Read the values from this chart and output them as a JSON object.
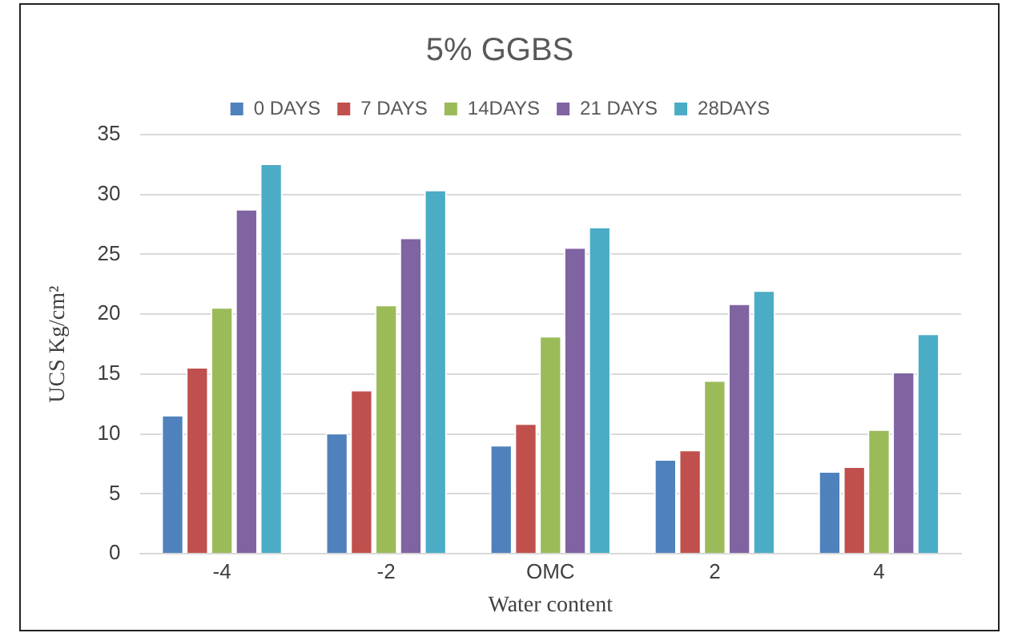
{
  "chart_data": {
    "type": "bar",
    "title": "5% GGBS",
    "xlabel": "Water content",
    "ylabel": "UCS Kg/cm²",
    "categories": [
      "-4",
      "-2",
      "OMC",
      "2",
      "4"
    ],
    "series": [
      {
        "name": "0 DAYS",
        "color": "#4f81bd",
        "values": [
          11.6,
          10.1,
          9.1,
          7.9,
          6.9
        ]
      },
      {
        "name": "7 DAYS",
        "color": "#c0504d",
        "values": [
          15.6,
          13.7,
          10.9,
          8.7,
          7.3
        ]
      },
      {
        "name": "14DAYS",
        "color": "#9bbb59",
        "values": [
          20.6,
          20.8,
          18.2,
          14.5,
          10.4
        ]
      },
      {
        "name": "21 DAYS",
        "color": "#8064a2",
        "values": [
          28.8,
          26.4,
          25.6,
          20.9,
          15.2
        ]
      },
      {
        "name": "28DAYS",
        "color": "#4bacc6",
        "values": [
          32.6,
          30.4,
          27.3,
          22.0,
          18.4
        ]
      }
    ],
    "ylim": [
      0,
      35
    ],
    "yticks": [
      0,
      5,
      10,
      15,
      20,
      25,
      30,
      35
    ],
    "grid": "y",
    "legend": "top"
  }
}
